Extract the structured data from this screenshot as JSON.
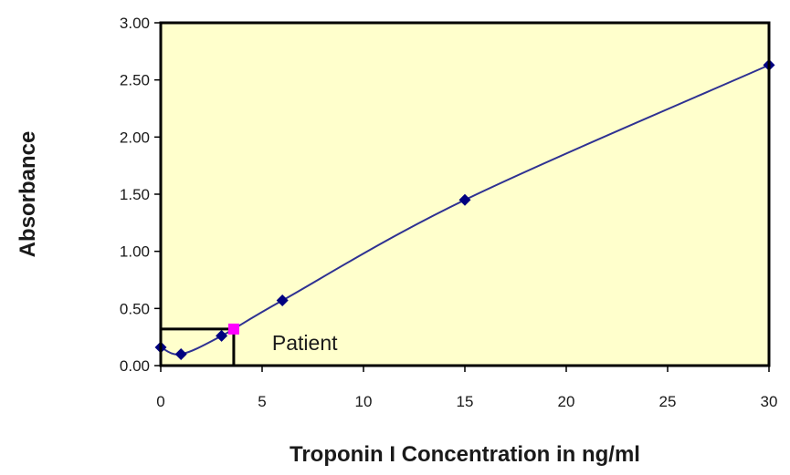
{
  "chart_data": {
    "type": "line",
    "title": "",
    "xlabel": "Troponin I Concentration in ng/ml",
    "ylabel": "Absorbance",
    "xlim": [
      0,
      30
    ],
    "ylim": [
      0,
      3
    ],
    "xticks": [
      0,
      5,
      10,
      15,
      20,
      25,
      30
    ],
    "yticks": [
      0,
      0.5,
      1,
      1.5,
      2,
      2.5,
      3
    ],
    "xtick_labels": [
      "0",
      "5",
      "10",
      "15",
      "20",
      "25",
      "30"
    ],
    "ytick_labels": [
      "0.00",
      "0.50",
      "1.00",
      "1.50",
      "2.00",
      "2.50",
      "3.00"
    ],
    "grid": false,
    "series": [
      {
        "x": [
          0,
          1,
          3,
          6,
          15,
          30
        ],
        "y": [
          0.16,
          0.1,
          0.26,
          0.57,
          1.45,
          2.63
        ]
      }
    ],
    "patient": {
      "x": 3.6,
      "y": 0.32,
      "label": "Patient"
    },
    "colors": {
      "plot_background": "#ffffcc",
      "line": "#2e3192",
      "marker": "#000080",
      "patient_marker": "#ff00ff",
      "frame": "#000000"
    }
  }
}
